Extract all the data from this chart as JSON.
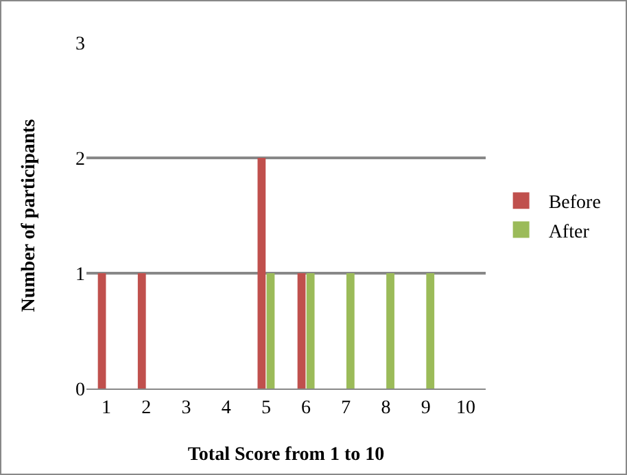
{
  "chart_data": {
    "type": "bar",
    "xlabel": "Total Score from 1 to 10",
    "ylabel": "Number of participants",
    "categories": [
      "1",
      "2",
      "3",
      "4",
      "5",
      "6",
      "7",
      "8",
      "9",
      "10"
    ],
    "series": [
      {
        "name": "Before",
        "color": "#c0504d",
        "values": [
          1,
          1,
          0,
          0,
          2,
          1,
          0,
          0,
          0,
          0
        ]
      },
      {
        "name": "After",
        "color": "#9bbb59",
        "values": [
          0,
          0,
          0,
          0,
          1,
          1,
          1,
          1,
          1,
          0
        ]
      }
    ],
    "ylim": [
      0,
      3
    ],
    "yticks": [
      0,
      1,
      2,
      3
    ],
    "grid": "y",
    "legend": "right"
  }
}
